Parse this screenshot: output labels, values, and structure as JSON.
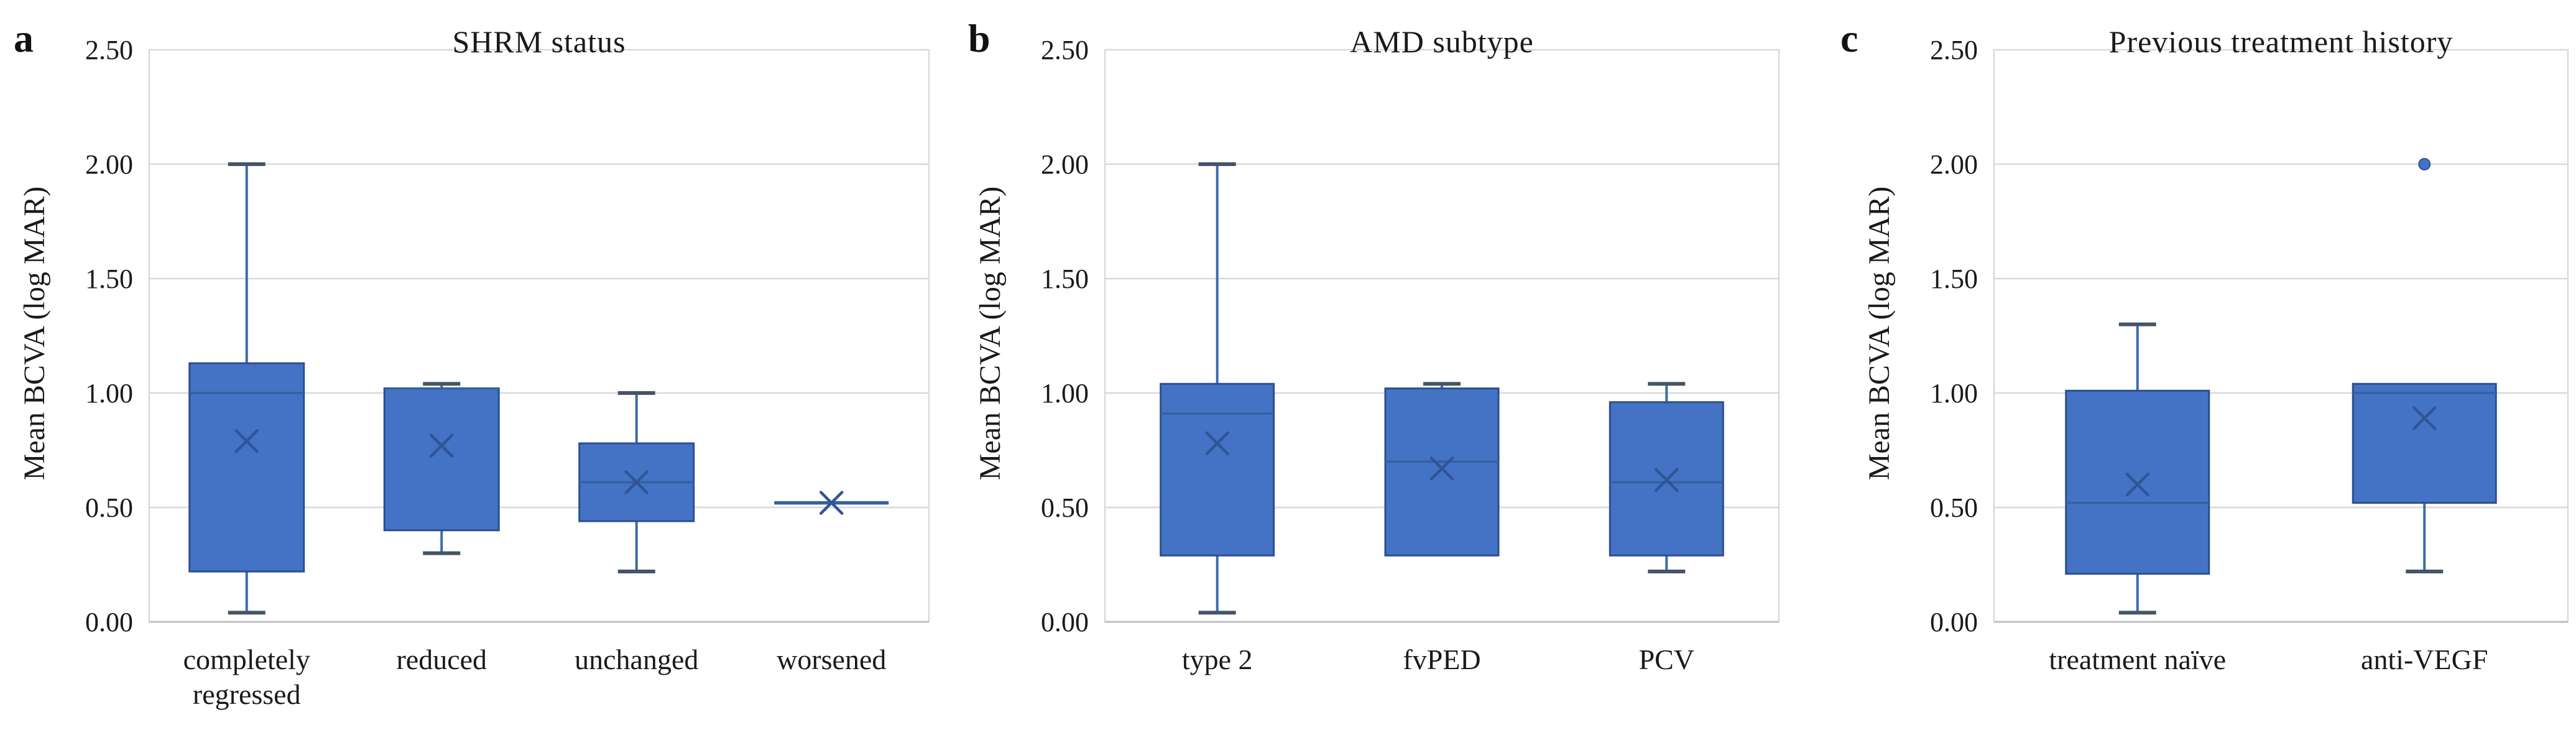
{
  "figure": {
    "background": "#ffffff"
  },
  "colors": {
    "box_fill": "#4472C4",
    "box_border": "#2B4F8F",
    "median_line": "#35619F",
    "whisker_line": "#3A6BB0",
    "whisker_cap": "#44546A",
    "mean_marker": "#2F5597",
    "outlier_fill": "#4472C4",
    "outlier_border": "#2F5597",
    "gridline": "#D9D9D9",
    "axis_line": "#BFBFBF",
    "tick_text": "#1a1a1a",
    "category_text": "#1a1a1a"
  },
  "chart_data": [
    {
      "type": "box",
      "panel_letter": "a",
      "title": "SHRM status",
      "ylabel": "Mean BCVA (log MAR)",
      "ylim": [
        0,
        2.5
      ],
      "grid": true,
      "yticks": [
        0,
        0.5,
        1.0,
        1.5,
        2.0,
        2.5
      ],
      "ytick_labels": [
        "0.00",
        "0.50",
        "1.00",
        "1.50",
        "2.00",
        "2.50"
      ],
      "categories": [
        "completely regressed",
        "reduced",
        "unchanged",
        "worsened"
      ],
      "boxes": [
        {
          "category": "completely regressed",
          "label_lines": [
            "completely",
            "regressed"
          ],
          "min": 0.04,
          "q1": 0.22,
          "median": 1.0,
          "q3": 1.13,
          "max": 2.0,
          "mean": 0.79,
          "outliers": []
        },
        {
          "category": "reduced",
          "label_lines": [
            "reduced"
          ],
          "min": 0.3,
          "q1": 0.4,
          "median": 1.02,
          "q3": 1.02,
          "max": 1.04,
          "mean": 0.77,
          "outliers": []
        },
        {
          "category": "unchanged",
          "label_lines": [
            "unchanged"
          ],
          "min": 0.22,
          "q1": 0.44,
          "median": 0.61,
          "q3": 0.78,
          "max": 1.0,
          "mean": 0.61,
          "outliers": []
        },
        {
          "category": "worsened",
          "label_lines": [
            "worsened"
          ],
          "min": 0.52,
          "q1": 0.52,
          "median": 0.52,
          "q3": 0.52,
          "max": 0.52,
          "mean": 0.52,
          "outliers": []
        }
      ]
    },
    {
      "type": "box",
      "panel_letter": "b",
      "title": "AMD subtype",
      "ylabel": "Mean BCVA (log MAR)",
      "ylim": [
        0,
        2.5
      ],
      "grid": true,
      "yticks": [
        0,
        0.5,
        1.0,
        1.5,
        2.0,
        2.5
      ],
      "ytick_labels": [
        "0.00",
        "0.50",
        "1.00",
        "1.50",
        "2.00",
        "2.50"
      ],
      "categories": [
        "type 2",
        "fvPED",
        "PCV"
      ],
      "boxes": [
        {
          "category": "type 2",
          "label_lines": [
            "type 2"
          ],
          "min": 0.04,
          "q1": 0.29,
          "median": 0.91,
          "q3": 1.04,
          "max": 2.0,
          "mean": 0.78,
          "outliers": []
        },
        {
          "category": "fvPED",
          "label_lines": [
            "fvPED"
          ],
          "min": 0.29,
          "q1": 0.29,
          "median": 0.7,
          "q3": 1.02,
          "max": 1.04,
          "mean": 0.67,
          "outliers": []
        },
        {
          "category": "PCV",
          "label_lines": [
            "PCV"
          ],
          "min": 0.22,
          "q1": 0.29,
          "median": 0.61,
          "q3": 0.96,
          "max": 1.04,
          "mean": 0.62,
          "outliers": []
        }
      ]
    },
    {
      "type": "box",
      "panel_letter": "c",
      "title": "Previous treatment history",
      "ylabel": "Mean BCVA (log MAR)",
      "ylim": [
        0,
        2.5
      ],
      "grid": true,
      "yticks": [
        0,
        0.5,
        1.0,
        1.5,
        2.0,
        2.5
      ],
      "ytick_labels": [
        "0.00",
        "0.50",
        "1.00",
        "1.50",
        "2.00",
        "2.50"
      ],
      "categories": [
        "treatment naïve",
        "anti-VEGF"
      ],
      "boxes": [
        {
          "category": "treatment naïve",
          "label_lines": [
            "treatment naïve"
          ],
          "min": 0.04,
          "q1": 0.21,
          "median": 0.52,
          "q3": 1.01,
          "max": 1.3,
          "mean": 0.6,
          "outliers": []
        },
        {
          "category": "anti-VEGF",
          "label_lines": [
            "anti-VEGF"
          ],
          "min": 0.22,
          "q1": 0.52,
          "median": 1.0,
          "q3": 1.04,
          "max": 1.04,
          "mean": 0.89,
          "outliers": [
            2.0
          ]
        }
      ]
    }
  ]
}
